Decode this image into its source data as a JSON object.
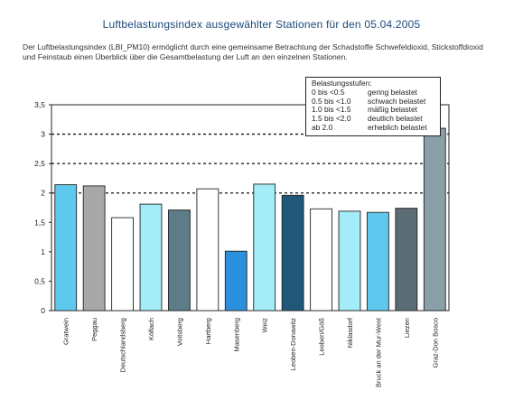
{
  "title": "Luftbelastungsindex ausgewählter Stationen für den 05.04.2005",
  "description": "Der Luftbelastungsindex (LBI_PM10) ermöglicht durch eine gemeinsame Betrachtung der Schadstoffe Schwefeldioxid, Stickstoffdioxid und Feinstaub einen Überblick über die Gesamtbelastung der Luft an den einzelnen Stationen.",
  "legend": {
    "title": "Belastungsstufen:",
    "rows": [
      {
        "range": "0 bis <0.5",
        "label": "gering belastet"
      },
      {
        "range": "0.5 bis <1.0",
        "label": "schwach belastet"
      },
      {
        "range": "1.0 bis <1.5",
        "label": "mäßig belastet"
      },
      {
        "range": "1.5 bis <2.0",
        "label": "deutlich belastet"
      },
      {
        "range": "ab 2.0",
        "label": "erheblich belastet"
      }
    ]
  },
  "chart_data": {
    "type": "bar",
    "title": "Luftbelastungsindex ausgewählter Stationen für den 05.04.2005",
    "xlabel": "",
    "ylabel": "",
    "ylim": [
      0,
      3.5
    ],
    "yticks": [
      "0",
      "0,5",
      "1",
      "1,5",
      "2",
      "2,5",
      "3",
      "3,5"
    ],
    "dashed_gridlines": [
      2,
      2.5,
      3
    ],
    "categories": [
      "Gratwein",
      "Peggau",
      "Deutschlandsberg",
      "Köflach",
      "Voitsberg",
      "Hartberg",
      "Masenberg",
      "Weiz",
      "Leoben-Donawitz",
      "Leoben/Göß",
      "Niklasdorf",
      "Bruck an der Mur-West",
      "Liezen",
      "Graz-Don Bosco"
    ],
    "values": [
      2.14,
      2.12,
      1.58,
      1.81,
      1.71,
      2.07,
      1.01,
      2.15,
      1.96,
      1.73,
      1.69,
      1.67,
      1.74,
      3.1
    ],
    "colors": [
      "#5fc8ee",
      "#a8a8a8",
      "#ffffff",
      "#a4ecf8",
      "#5c7c88",
      "#ffffff",
      "#2a8fdc",
      "#a4ecf8",
      "#1f5878",
      "#ffffff",
      "#a4ecf8",
      "#5fc8ee",
      "#5c6c74",
      "#8aa0a8"
    ]
  }
}
